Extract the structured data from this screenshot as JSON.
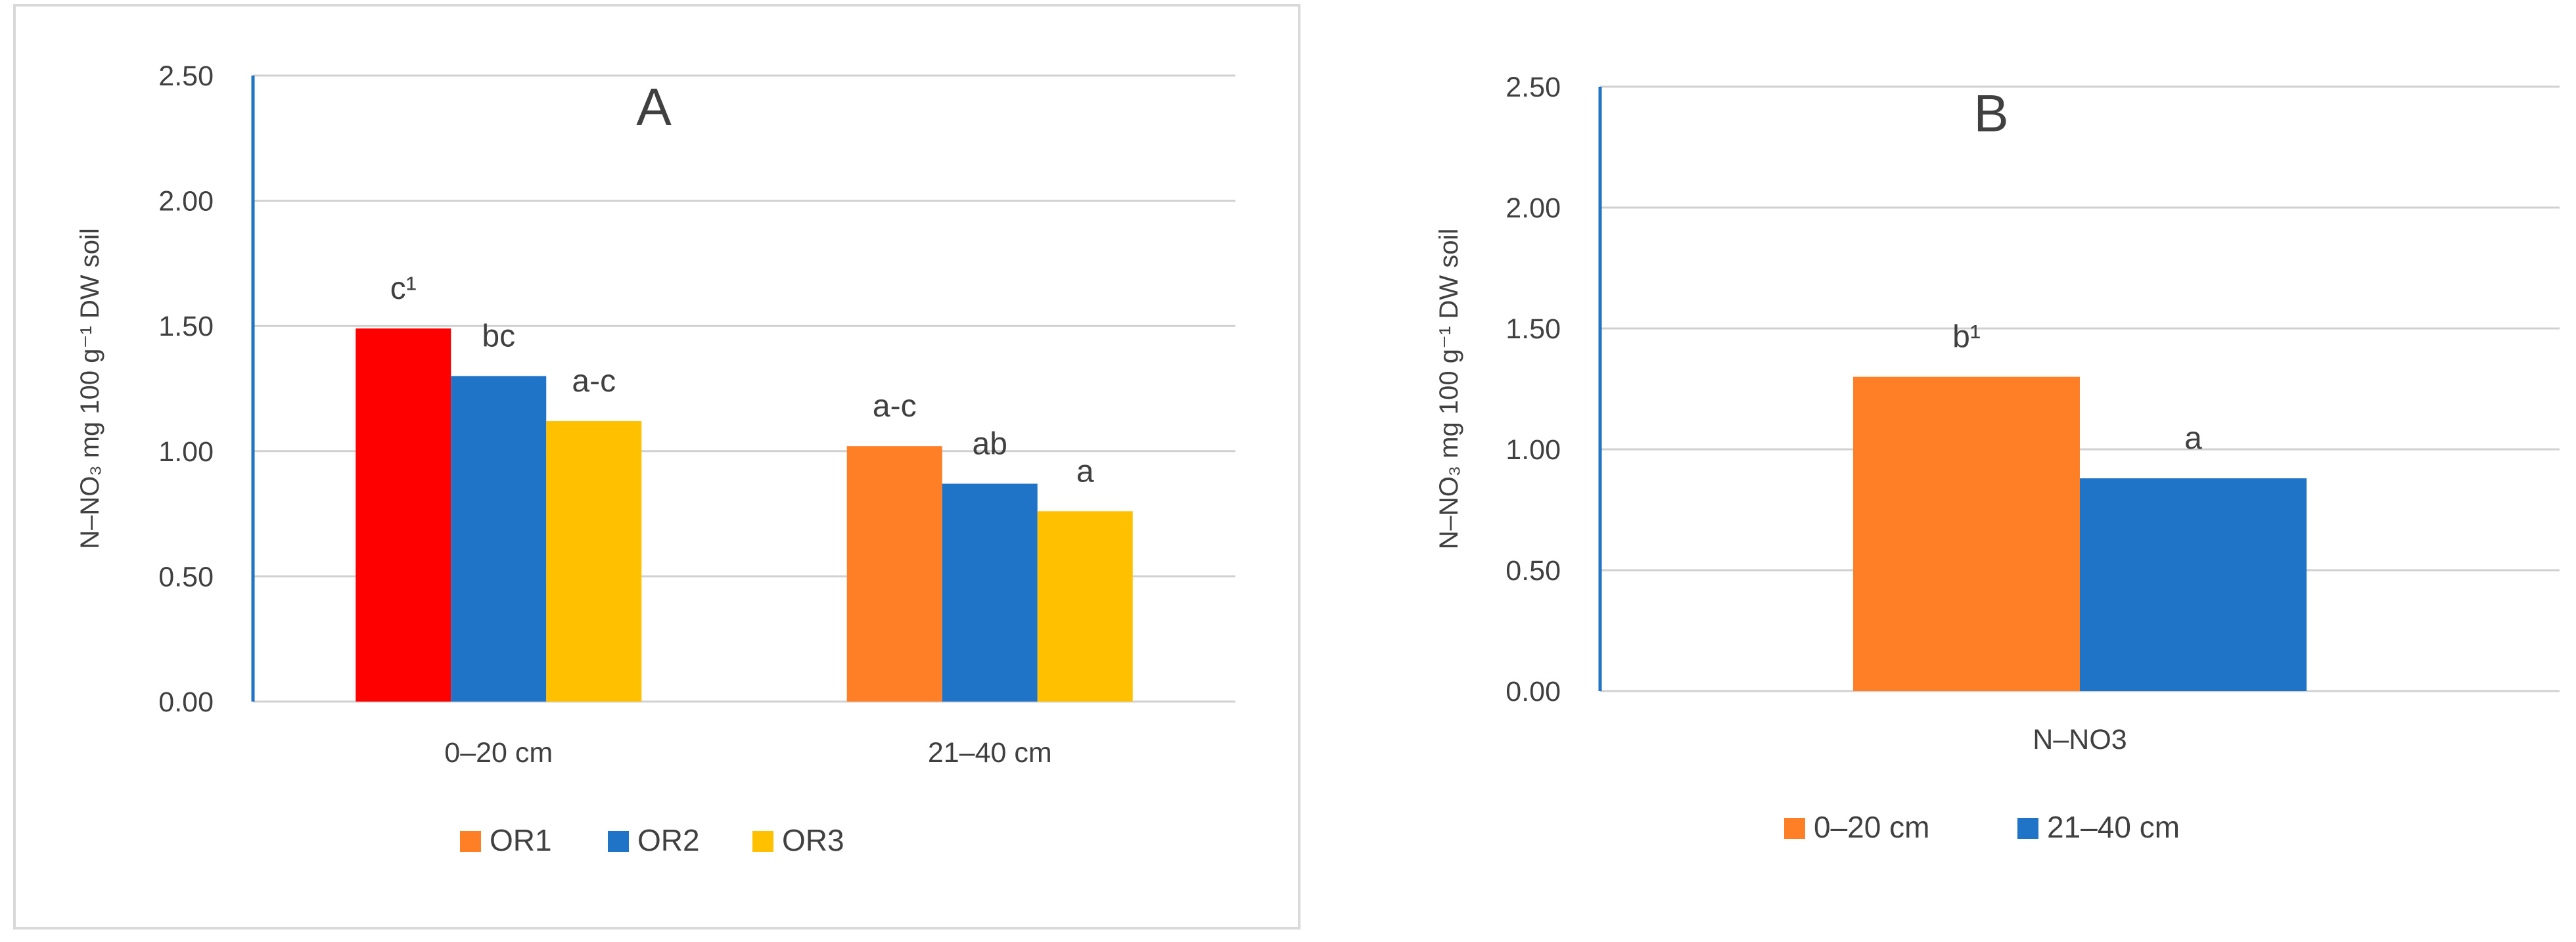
{
  "chart_data": [
    {
      "type": "bar",
      "title": "A",
      "ylabel": "N–NO₃ mg 100 g⁻¹ DW soil",
      "ylim": [
        0,
        2.5
      ],
      "ytick_step": 0.5,
      "yticks": [
        "0.00",
        "0.50",
        "1.00",
        "1.50",
        "2.00",
        "2.50"
      ],
      "grid": true,
      "legend_position": "bottom",
      "categories": [
        "0–20 cm",
        "21–40 cm"
      ],
      "series": [
        {
          "name": "OR1",
          "color": "#FF7F27",
          "values": [
            1.49,
            1.02
          ],
          "labels": [
            "c¹",
            "a-c"
          ]
        },
        {
          "name": "OR2",
          "color": "#1F74C8",
          "values": [
            1.3,
            0.87
          ],
          "labels": [
            "bc",
            "ab"
          ]
        },
        {
          "name": "OR3",
          "color": "#FFC000",
          "values": [
            1.12,
            0.76
          ],
          "labels": [
            "a-c",
            "a"
          ]
        }
      ],
      "bar_color_overrides": [
        {
          "series": 0,
          "category": 0,
          "color": "#FF0000"
        }
      ]
    },
    {
      "type": "bar",
      "title": "B",
      "ylabel": "N–NO₃ mg 100 g⁻¹ DW soil",
      "ylim": [
        0,
        2.5
      ],
      "ytick_step": 0.5,
      "yticks": [
        "0.00",
        "0.50",
        "1.00",
        "1.50",
        "2.00",
        "2.50"
      ],
      "grid": true,
      "legend_position": "bottom",
      "categories": [
        "N–NO3"
      ],
      "series": [
        {
          "name": "0–20 cm",
          "color": "#FF7F27",
          "values": [
            1.3
          ],
          "labels": [
            "b¹"
          ]
        },
        {
          "name": "21–40 cm",
          "color": "#1F74C8",
          "values": [
            0.88
          ],
          "labels": [
            "a"
          ]
        }
      ]
    }
  ]
}
